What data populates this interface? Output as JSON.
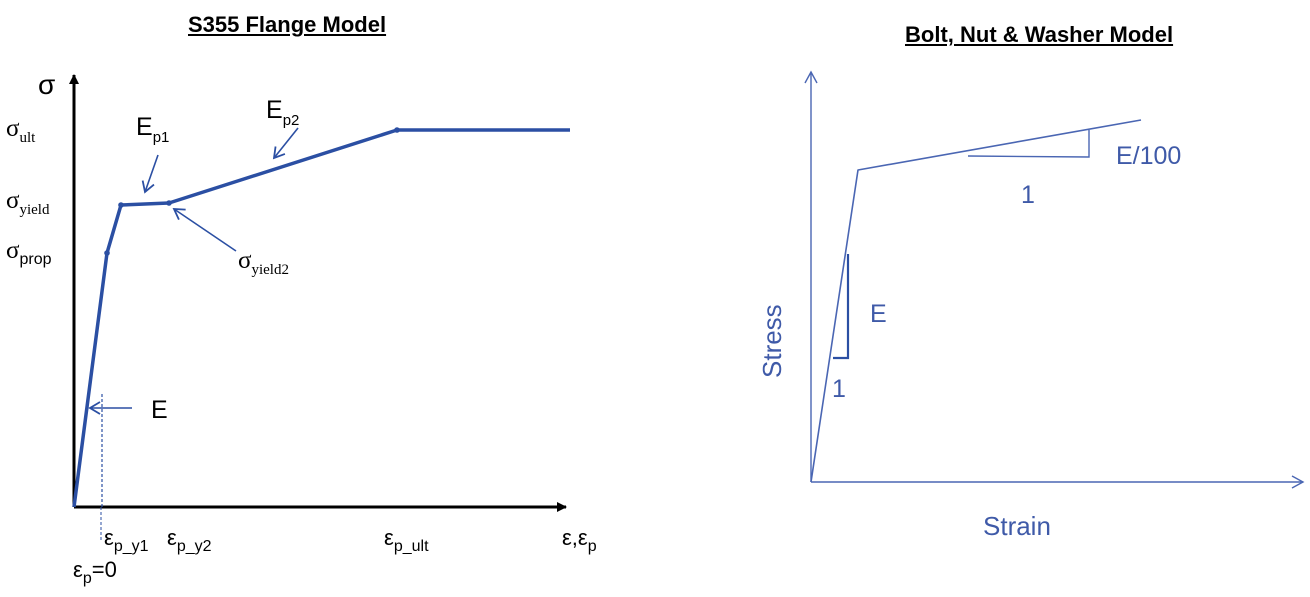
{
  "left_panel": {
    "title": "S355 Flange Model",
    "labels": {
      "sigma": "σ",
      "sigma_ult": "σ",
      "sigma_ult_sub": "ult",
      "sigma_yield": "σ",
      "sigma_yield_sub": "yield",
      "sigma_prop": "σ",
      "sigma_prop_sub": "prop",
      "sigma_yield2": "σ",
      "sigma_yield2_sub": "yield2",
      "ep1": "E",
      "ep1_sub": "p1",
      "ep2": "E",
      "ep2_sub": "p2",
      "e_label": "E",
      "eps_py1": "ε",
      "eps_py1_sub": "p_y1",
      "eps_py2": "ε",
      "eps_py2_sub": "p_y2",
      "eps_pult": "ε",
      "eps_pult_sub": "p_ult",
      "eps_axis": "ε,ε",
      "eps_axis_sub": "p",
      "eps_p0": "ε",
      "eps_p0_sub": "p",
      "eps_p0_tail": "=0"
    }
  },
  "right_panel": {
    "title": "Bolt, Nut & Washer Model",
    "labels": {
      "stress": "Stress",
      "strain": "Strain",
      "e": "E",
      "one_e": "1",
      "e100": "E/100",
      "one_e100": "1"
    }
  },
  "colors": {
    "curve": "#2b4fa3",
    "arrow": "#2b4fa3",
    "axis": "#000000",
    "right_line": "#4a66b3",
    "right_text": "#3f5aa8"
  }
}
